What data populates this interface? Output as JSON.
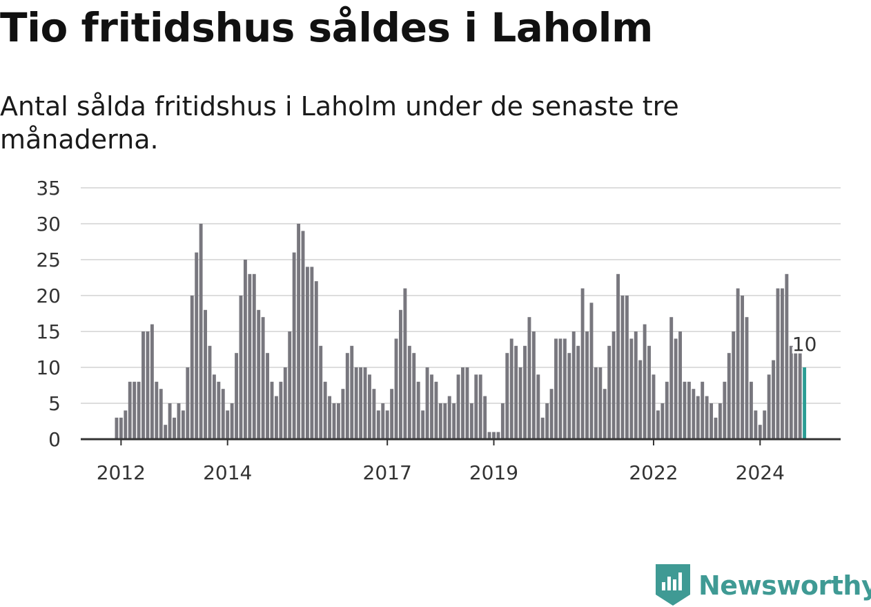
{
  "title": "Tio fritidshus såldes i Laholm",
  "subtitle": "Antal sålda fritidshus i Laholm under de senaste tre månaderna.",
  "brand": "Newsworthy",
  "colors": {
    "bar": "#78777e",
    "highlight": "#2a9d94",
    "grid": "#dddddd",
    "axis": "#333333",
    "brand": "#3f9a94"
  },
  "chart_data": {
    "type": "bar",
    "ylim": [
      0,
      35
    ],
    "yticks": [
      0,
      5,
      10,
      15,
      20,
      25,
      30,
      35
    ],
    "xticks": [
      {
        "label": "2012",
        "x": "2012-01"
      },
      {
        "label": "2014",
        "x": "2014-01"
      },
      {
        "label": "2017",
        "x": "2017-01"
      },
      {
        "label": "2019",
        "x": "2019-01"
      },
      {
        "label": "2022",
        "x": "2022-01"
      },
      {
        "label": "2024",
        "x": "2024-01"
      }
    ],
    "start": "2011-12",
    "values": [
      3,
      3,
      4,
      8,
      8,
      8,
      15,
      15,
      16,
      8,
      7,
      2,
      5,
      3,
      5,
      4,
      10,
      20,
      26,
      30,
      18,
      13,
      9,
      8,
      7,
      4,
      5,
      12,
      20,
      25,
      23,
      23,
      18,
      17,
      12,
      8,
      6,
      8,
      10,
      15,
      26,
      30,
      29,
      24,
      24,
      22,
      13,
      8,
      6,
      5,
      5,
      7,
      12,
      13,
      10,
      10,
      10,
      9,
      7,
      4,
      5,
      4,
      7,
      14,
      18,
      21,
      13,
      12,
      8,
      4,
      10,
      9,
      8,
      5,
      5,
      6,
      5,
      9,
      10,
      10,
      5,
      9,
      9,
      6,
      1,
      1,
      1,
      5,
      12,
      14,
      13,
      10,
      13,
      17,
      15,
      9,
      3,
      5,
      7,
      14,
      14,
      14,
      12,
      15,
      13,
      21,
      15,
      19,
      10,
      10,
      7,
      13,
      15,
      23,
      20,
      20,
      14,
      15,
      11,
      16,
      13,
      9,
      4,
      5,
      8,
      17,
      14,
      15,
      8,
      8,
      7,
      6,
      8,
      6,
      5,
      3,
      5,
      8,
      12,
      15,
      21,
      20,
      17,
      8,
      4,
      2,
      4,
      9,
      11,
      21,
      21,
      23,
      13,
      12,
      12,
      10
    ],
    "highlight_index_from_end": 1,
    "annotation": "10"
  }
}
